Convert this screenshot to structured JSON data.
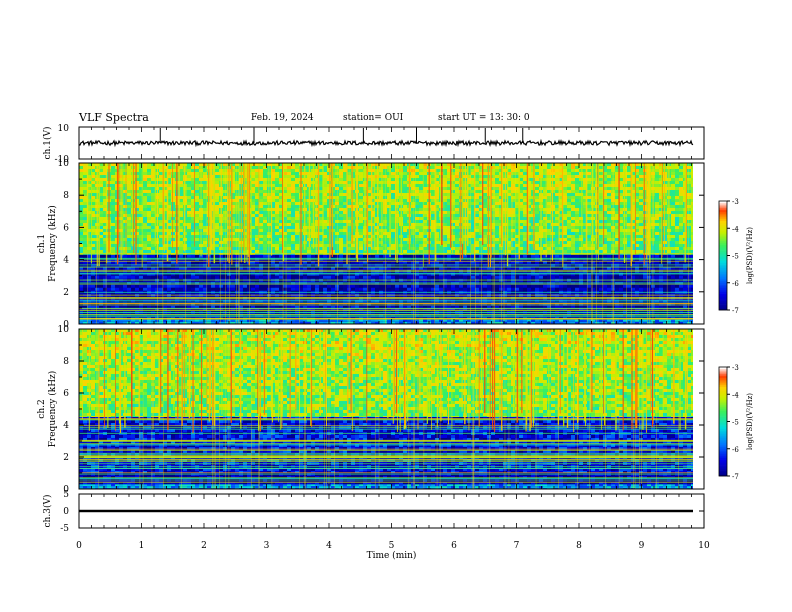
{
  "header": {
    "title": "VLF Spectra",
    "date": "Feb. 19, 2024",
    "station": "station= OUI",
    "start": "start  UT =   13: 30: 0"
  },
  "colors": {
    "spectrogram_low": "#00008b",
    "spectrogram_mid": "#00c8ff",
    "spectrogram_high": "#7fff00",
    "spectrogram_peak": "#ffff00",
    "colorbar_top": "#ffffff"
  },
  "chart_data": [
    {
      "type": "line",
      "panel": "ch1-waveform",
      "ylabel": "ch.1(V)",
      "ylim": [
        -10,
        10
      ],
      "yticks": [
        "10",
        "-10"
      ],
      "xlim": [
        0,
        10
      ],
      "series": [
        {
          "baseline": 0,
          "noise_amplitude": 0.6,
          "spike_x": [
            1.3,
            2.8,
            4.55,
            5.4,
            6.5,
            7.1
          ]
        }
      ]
    },
    {
      "type": "heatmap",
      "panel": "ch1-spectrogram",
      "ylabel": "ch.1",
      "ylabel2": "Frequency (kHz)",
      "xlim": [
        0,
        9.85
      ],
      "ylim": [
        0,
        10
      ],
      "yticks": [
        "0",
        "2",
        "4",
        "6",
        "8",
        "10"
      ],
      "colorbar": {
        "label": "log(PSD)(V²/Hz)",
        "range": [
          -7,
          -3
        ],
        "ticks": [
          "-3",
          "-4",
          "-5",
          "-6",
          "-7"
        ]
      },
      "bands_khz": [
        [
          0,
          0.4
        ],
        [
          0.4,
          1.0
        ],
        [
          1.0,
          4.3
        ],
        [
          4.3,
          10
        ]
      ],
      "band_log_psd": [
        -5.6,
        -6.8,
        -6.6,
        -4.4
      ]
    },
    {
      "type": "heatmap",
      "panel": "ch2-spectrogram",
      "ylabel": "ch.2",
      "ylabel2": "Frequency (kHz)",
      "xlim": [
        0,
        9.85
      ],
      "ylim": [
        0,
        10
      ],
      "yticks": [
        "0",
        "2",
        "4",
        "6",
        "8",
        "10"
      ],
      "colorbar": {
        "label": "log(PSD)(V²/Hz)",
        "range": [
          -7,
          -3
        ],
        "ticks": [
          "-3",
          "-4",
          "-5",
          "-6",
          "-7"
        ]
      },
      "bands_khz": [
        [
          0,
          0.3
        ],
        [
          0.3,
          1.0
        ],
        [
          1.0,
          4.5
        ],
        [
          4.5,
          10
        ]
      ],
      "band_log_psd": [
        -5.6,
        -6.8,
        -6.4,
        -4.3
      ]
    },
    {
      "type": "line",
      "panel": "ch3-waveform",
      "ylabel": "ch.3(V)",
      "ylim": [
        -5,
        5
      ],
      "yticks": [
        "5",
        "0",
        "-5"
      ],
      "xlim": [
        0,
        10
      ],
      "series": [
        {
          "baseline": 0,
          "noise_amplitude": 0.3
        }
      ]
    }
  ],
  "xaxis": {
    "label": "Time (min)",
    "ticks": [
      "0",
      "1",
      "2",
      "3",
      "4",
      "5",
      "6",
      "7",
      "8",
      "9",
      "10"
    ],
    "range": [
      0,
      10
    ]
  }
}
